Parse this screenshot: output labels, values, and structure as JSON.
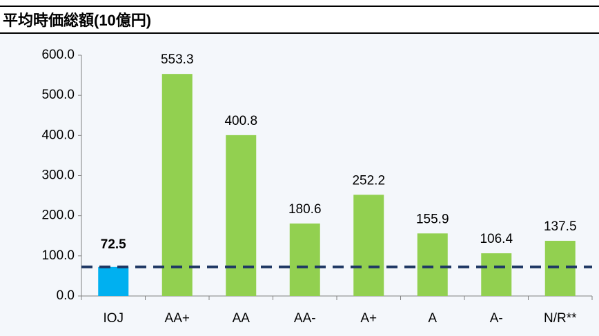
{
  "chart_data": {
    "type": "bar",
    "title": "平均時価総額(10億円)",
    "categories": [
      "IOJ",
      "AA+",
      "AA",
      "AA-",
      "A+",
      "A",
      "A-",
      "N/R**"
    ],
    "values": [
      72.5,
      553.3,
      400.8,
      180.6,
      252.2,
      155.9,
      106.4,
      137.5
    ],
    "colors": [
      "#00b0f0",
      "#92d050",
      "#92d050",
      "#92d050",
      "#92d050",
      "#92d050",
      "#92d050",
      "#92d050"
    ],
    "ylim": [
      0,
      600
    ],
    "yticks": [
      {
        "value": 0,
        "label": "0.0"
      },
      {
        "value": 100,
        "label": "100.0"
      },
      {
        "value": 200,
        "label": "200.0"
      },
      {
        "value": 300,
        "label": "300.0"
      },
      {
        "value": 400,
        "label": "400.0"
      },
      {
        "value": 500,
        "label": "500.0"
      },
      {
        "value": 600,
        "label": "600.0"
      }
    ],
    "reference_line": {
      "value": 72.5,
      "color": "#1f3864",
      "style": "dashed"
    },
    "grid": false
  }
}
